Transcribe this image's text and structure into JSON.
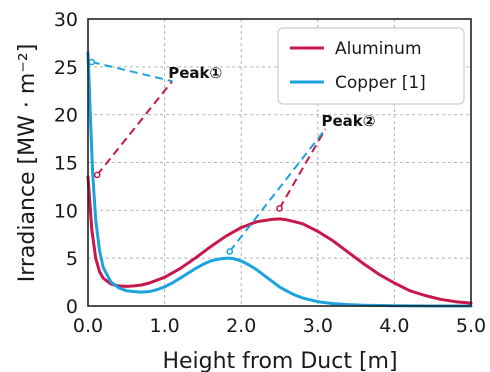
{
  "chart_data": {
    "type": "line",
    "title": "",
    "xlabel": "Height from Duct [m]",
    "ylabel": "Irradiance [MW · m⁻²]",
    "xlim": [
      0,
      5
    ],
    "ylim": [
      0,
      30
    ],
    "x_ticks": [
      "0.0",
      "1.0",
      "2.0",
      "3.0",
      "4.0",
      "5.0"
    ],
    "y_ticks": [
      "0",
      "5",
      "10",
      "15",
      "20",
      "25",
      "30"
    ],
    "grid": true,
    "legend_position": "top-right",
    "series": [
      {
        "name": "Aluminum",
        "color": "#c8174a",
        "x": [
          0.0,
          0.05,
          0.1,
          0.15,
          0.2,
          0.3,
          0.4,
          0.5,
          0.6,
          0.7,
          0.8,
          1.0,
          1.2,
          1.4,
          1.6,
          1.8,
          2.0,
          2.2,
          2.4,
          2.5,
          2.6,
          2.8,
          3.0,
          3.2,
          3.4,
          3.6,
          3.8,
          4.0,
          4.2,
          4.4,
          4.6,
          4.8,
          5.0
        ],
        "y": [
          13.5,
          8.0,
          5.0,
          3.6,
          2.9,
          2.3,
          2.1,
          2.05,
          2.1,
          2.2,
          2.4,
          3.0,
          3.9,
          5.0,
          6.2,
          7.3,
          8.2,
          8.8,
          9.05,
          9.1,
          9.0,
          8.6,
          7.8,
          6.8,
          5.6,
          4.4,
          3.3,
          2.4,
          1.6,
          1.1,
          0.7,
          0.45,
          0.3
        ]
      },
      {
        "name": "Copper [1]",
        "color": "#1aa3df",
        "x": [
          0.0,
          0.03,
          0.06,
          0.1,
          0.15,
          0.2,
          0.3,
          0.4,
          0.5,
          0.6,
          0.7,
          0.8,
          0.9,
          1.0,
          1.1,
          1.2,
          1.3,
          1.4,
          1.5,
          1.6,
          1.7,
          1.8,
          1.85,
          1.9,
          2.0,
          2.1,
          2.2,
          2.3,
          2.4,
          2.5,
          2.6,
          2.7,
          2.8,
          3.0,
          3.2,
          3.4,
          3.6,
          3.8,
          4.0,
          4.5,
          5.0
        ],
        "y": [
          26.5,
          20.0,
          14.0,
          9.0,
          5.8,
          4.0,
          2.5,
          1.9,
          1.6,
          1.5,
          1.45,
          1.5,
          1.7,
          2.0,
          2.4,
          2.9,
          3.4,
          3.9,
          4.35,
          4.7,
          4.9,
          5.0,
          5.0,
          4.95,
          4.7,
          4.3,
          3.8,
          3.2,
          2.6,
          2.0,
          1.55,
          1.15,
          0.85,
          0.45,
          0.25,
          0.15,
          0.08,
          0.05,
          0.03,
          0.0,
          0.0
        ]
      }
    ],
    "annotations": [
      {
        "label": "Peak①",
        "text_at": [
          1.1,
          23.5
        ],
        "lines": [
          {
            "color": "#c8174a",
            "from": [
              0.12,
              13.7
            ],
            "to": [
              1.1,
              23.5
            ]
          },
          {
            "color": "#1aa3df",
            "from": [
              0.05,
              25.5
            ],
            "to": [
              1.1,
              23.5
            ]
          }
        ]
      },
      {
        "label": "Peak②",
        "text_at": [
          3.1,
          18.5
        ],
        "lines": [
          {
            "color": "#c8174a",
            "from": [
              2.5,
              10.2
            ],
            "to": [
              3.1,
              18.5
            ]
          },
          {
            "color": "#1aa3df",
            "from": [
              1.85,
              5.7
            ],
            "to": [
              3.1,
              18.5
            ]
          }
        ]
      }
    ]
  }
}
